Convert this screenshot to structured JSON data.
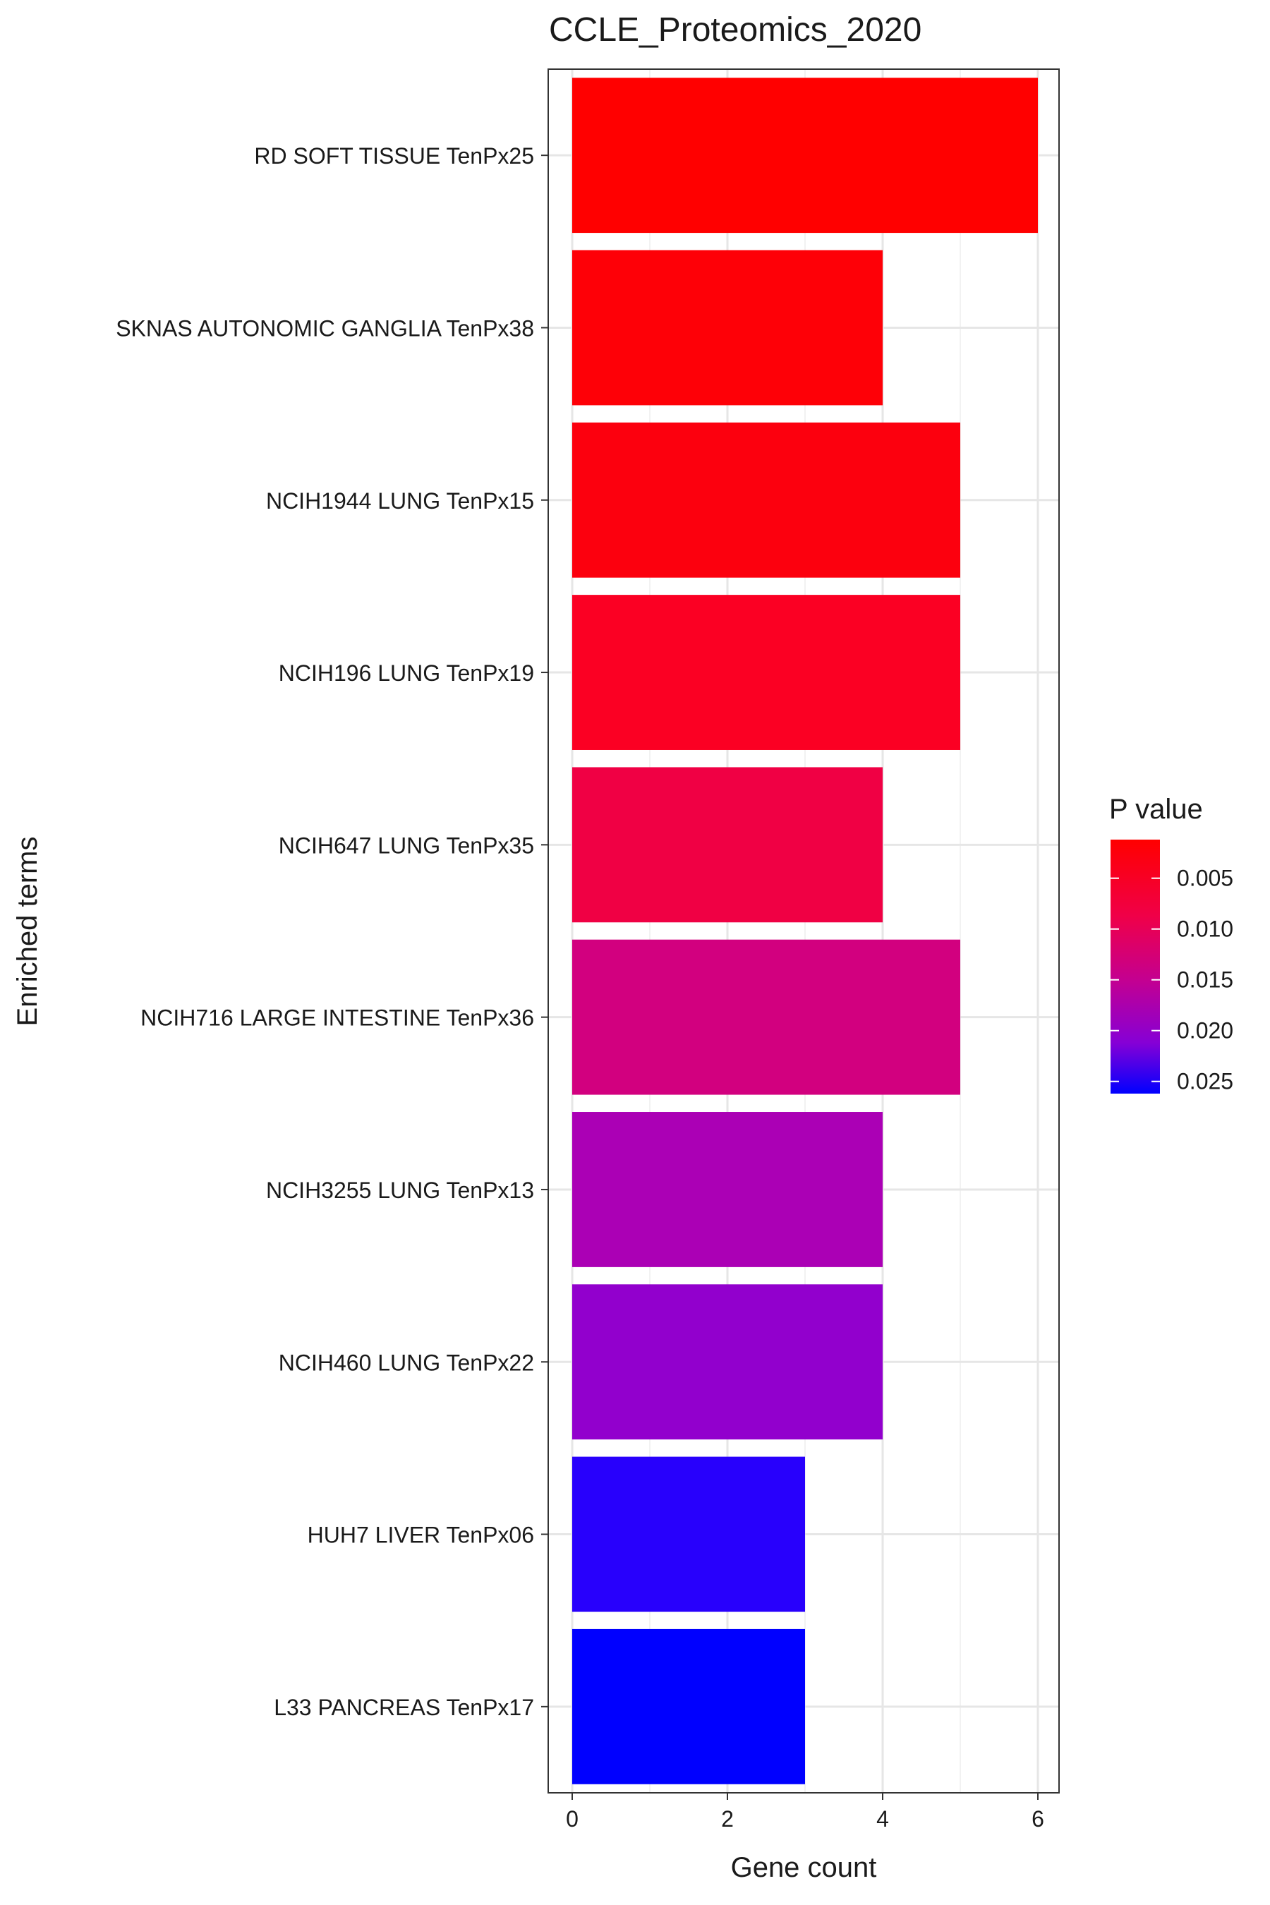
{
  "chart_data": {
    "type": "bar",
    "orientation": "horizontal",
    "title": "CCLE_Proteomics_2020",
    "xlabel": "Gene count",
    "ylabel": "Enriched terms",
    "xlim": [
      0,
      6.25
    ],
    "xticks": [
      "0",
      "2",
      "4",
      "6"
    ],
    "grid": true,
    "categories": [
      "RD SOFT TISSUE TenPx25",
      "SKNAS AUTONOMIC GANGLIA TenPx38",
      "NCIH1944 LUNG TenPx15",
      "NCIH196 LUNG TenPx19",
      "NCIH647 LUNG TenPx35",
      "NCIH716 LARGE INTESTINE TenPx36",
      "NCIH3255 LUNG TenPx13",
      "NCIH460 LUNG TenPx22",
      "HUH7 LIVER TenPx06",
      "L33 PANCREAS TenPx17"
    ],
    "values": [
      6,
      4,
      5,
      5,
      4,
      5,
      4,
      4,
      3,
      3
    ],
    "p_values": [
      0.0015,
      0.0022,
      0.0035,
      0.0048,
      0.0075,
      0.0125,
      0.0172,
      0.0205,
      0.025,
      0.0262
    ],
    "bar_colors": [
      "#ff0000",
      "#fe0007",
      "#fc000e",
      "#fb0023",
      "#f00044",
      "#d2007f",
      "#ab00b5",
      "#9200cd",
      "#2800fc",
      "#0000ff"
    ],
    "legend": {
      "title": "P value",
      "position": "right",
      "ticks": [
        "0.005",
        "0.010",
        "0.015",
        "0.020",
        "0.025"
      ],
      "colors": {
        "low": "#ff0000",
        "high": "#0000ff"
      }
    }
  }
}
